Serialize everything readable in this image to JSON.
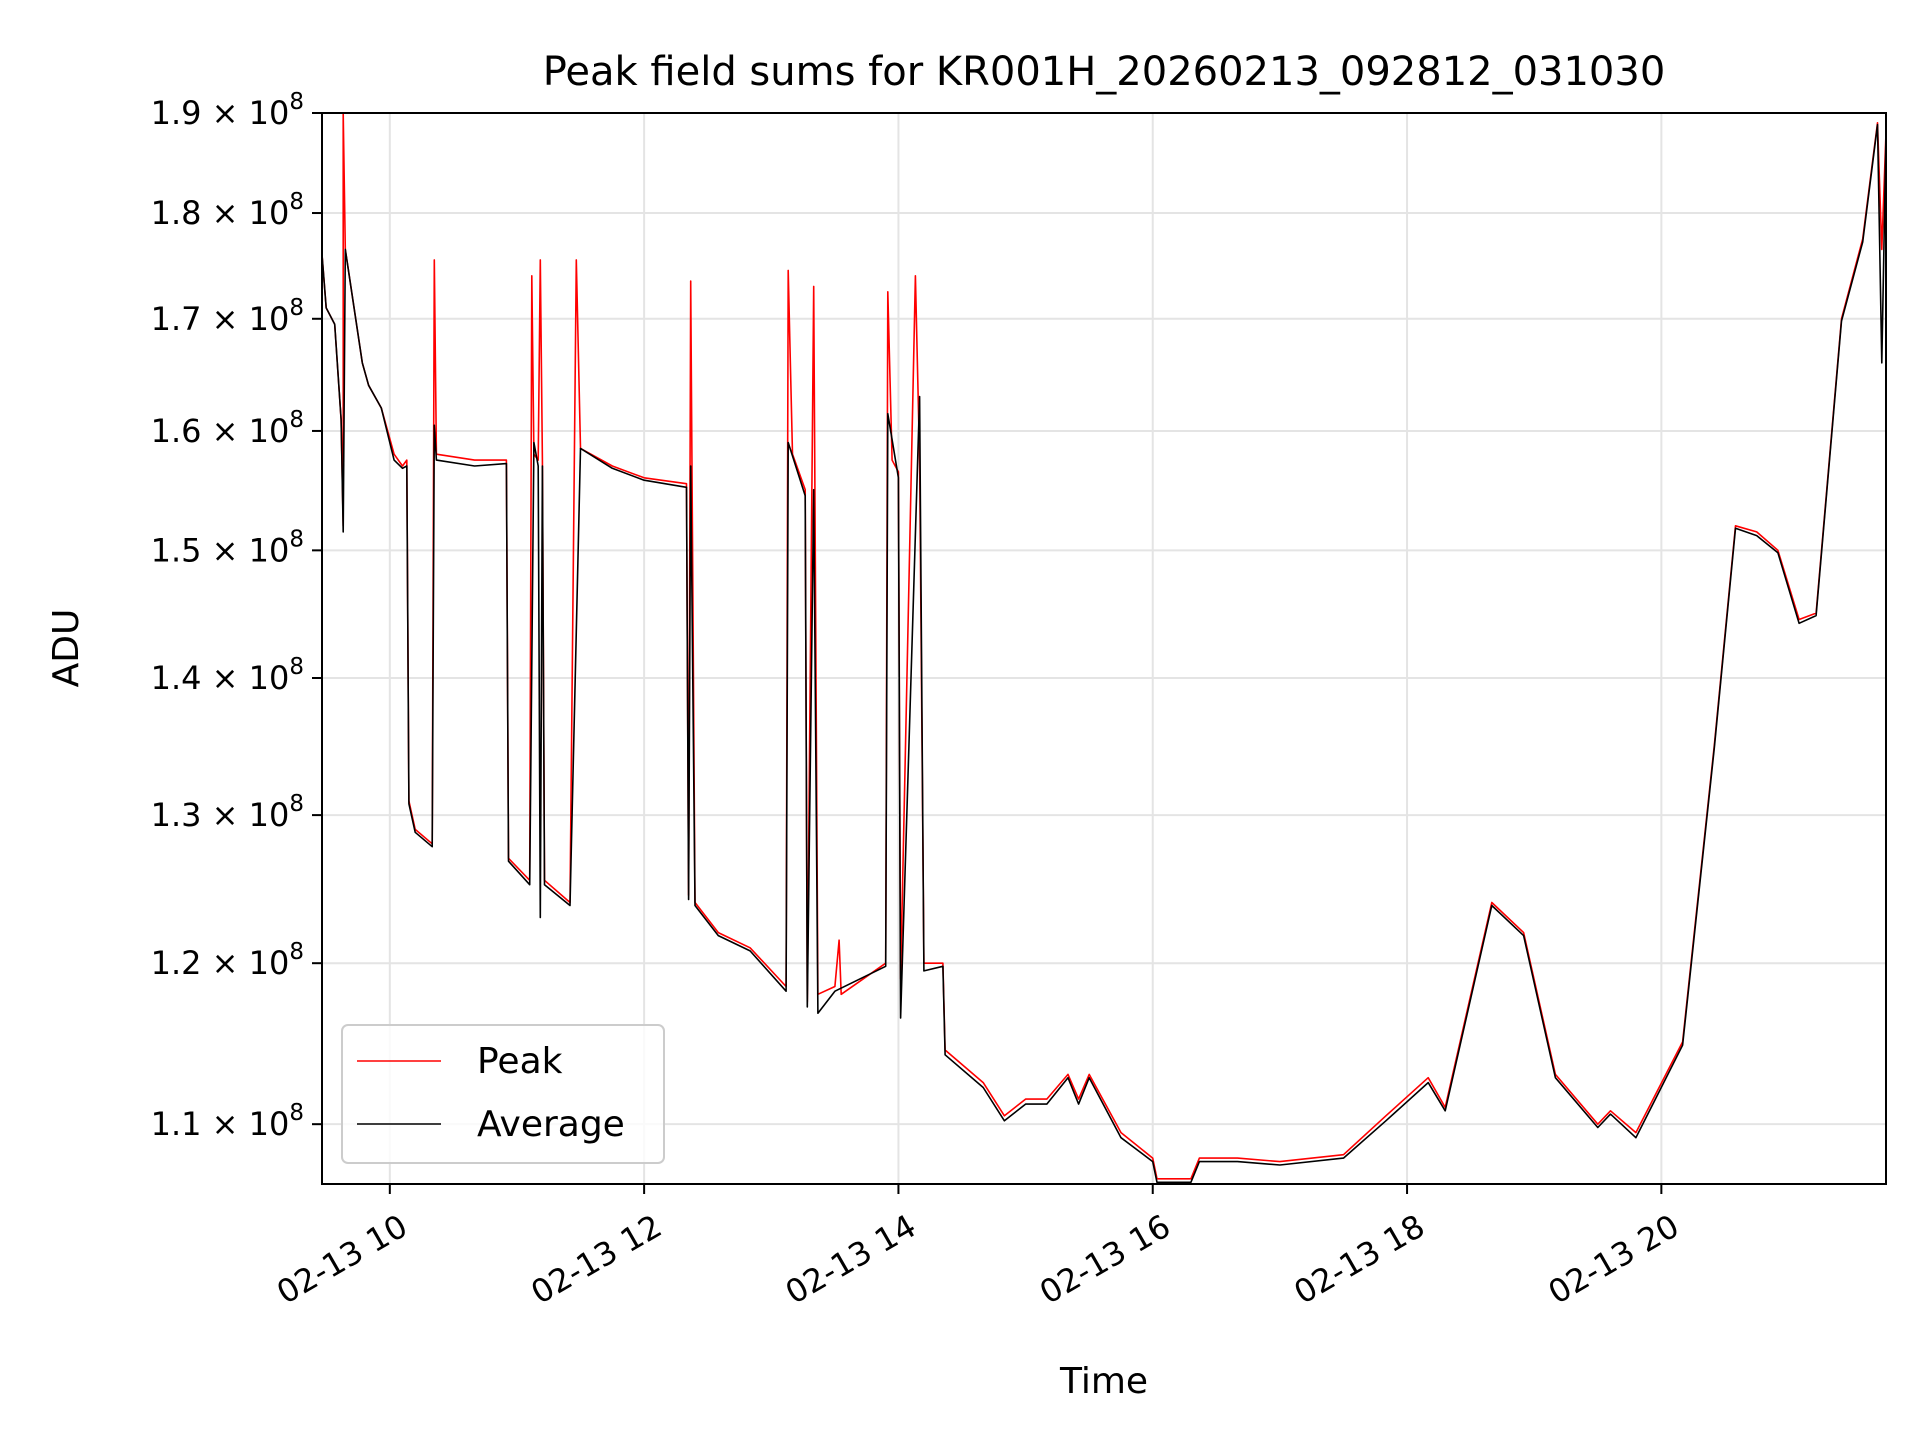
{
  "chart_data": {
    "type": "line",
    "title": "Peak field sums for KR001H_20260213_092812_031030",
    "xlabel": "Time",
    "ylabel": "ADU",
    "yscale": "log",
    "xlim": [
      "2026-02-13 09:28",
      "2026-02-13 21:46"
    ],
    "ylim": [
      106500000,
      190000000
    ],
    "grid": true,
    "legend_position": "lower-left",
    "x_ticks": [
      {
        "value": "2026-02-13 10:00",
        "label": "02-13 10"
      },
      {
        "value": "2026-02-13 12:00",
        "label": "02-13 12"
      },
      {
        "value": "2026-02-13 14:00",
        "label": "02-13 14"
      },
      {
        "value": "2026-02-13 16:00",
        "label": "02-13 16"
      },
      {
        "value": "2026-02-13 18:00",
        "label": "02-13 18"
      },
      {
        "value": "2026-02-13 20:00",
        "label": "02-13 20"
      }
    ],
    "y_ticks": [
      {
        "value": 110000000,
        "mantissa": "1.1",
        "exp": "8"
      },
      {
        "value": 120000000,
        "mantissa": "1.2",
        "exp": "8"
      },
      {
        "value": 130000000,
        "mantissa": "1.3",
        "exp": "8"
      },
      {
        "value": 140000000,
        "mantissa": "1.4",
        "exp": "8"
      },
      {
        "value": 150000000,
        "mantissa": "1.5",
        "exp": "8"
      },
      {
        "value": 160000000,
        "mantissa": "1.6",
        "exp": "8"
      },
      {
        "value": 170000000,
        "mantissa": "1.7",
        "exp": "8"
      },
      {
        "value": 180000000,
        "mantissa": "1.8",
        "exp": "8"
      },
      {
        "value": 190000000,
        "mantissa": "1.9",
        "exp": "8"
      }
    ],
    "series": [
      {
        "name": "Peak",
        "color": "#ff0000",
        "points": [
          [
            "2026-02-13 09:28",
            176000000
          ],
          [
            "2026-02-13 09:30",
            171000000
          ],
          [
            "2026-02-13 09:34",
            169500000
          ],
          [
            "2026-02-13 09:37",
            161000000
          ],
          [
            "2026-02-13 09:38",
            152000000
          ],
          [
            "2026-02-13 09:38",
            190000000
          ],
          [
            "2026-02-13 09:39",
            176500000
          ],
          [
            "2026-02-13 09:47",
            166000000
          ],
          [
            "2026-02-13 09:50",
            164000000
          ],
          [
            "2026-02-13 09:56",
            162000000
          ],
          [
            "2026-02-13 10:02",
            158000000
          ],
          [
            "2026-02-13 10:06",
            157000000
          ],
          [
            "2026-02-13 10:08",
            157500000
          ],
          [
            "2026-02-13 10:09",
            131000000
          ],
          [
            "2026-02-13 10:12",
            129000000
          ],
          [
            "2026-02-13 10:20",
            128000000
          ],
          [
            "2026-02-13 10:21",
            175500000
          ],
          [
            "2026-02-13 10:22",
            158000000
          ],
          [
            "2026-02-13 10:40",
            157500000
          ],
          [
            "2026-02-13 10:55",
            157500000
          ],
          [
            "2026-02-13 10:56",
            127000000
          ],
          [
            "2026-02-13 11:06",
            125500000
          ],
          [
            "2026-02-13 11:07",
            174000000
          ],
          [
            "2026-02-13 11:08",
            158000000
          ],
          [
            "2026-02-13 11:10",
            157500000
          ],
          [
            "2026-02-13 11:11",
            175500000
          ],
          [
            "2026-02-13 11:12",
            157500000
          ],
          [
            "2026-02-13 11:13",
            125500000
          ],
          [
            "2026-02-13 11:25",
            124000000
          ],
          [
            "2026-02-13 11:28",
            175500000
          ],
          [
            "2026-02-13 11:30",
            158500000
          ],
          [
            "2026-02-13 11:45",
            157000000
          ],
          [
            "2026-02-13 12:00",
            156000000
          ],
          [
            "2026-02-13 12:20",
            155500000
          ],
          [
            "2026-02-13 12:21",
            124500000
          ],
          [
            "2026-02-13 12:22",
            173500000
          ],
          [
            "2026-02-13 12:24",
            124000000
          ],
          [
            "2026-02-13 12:35",
            122000000
          ],
          [
            "2026-02-13 12:50",
            121000000
          ],
          [
            "2026-02-13 13:07",
            118500000
          ],
          [
            "2026-02-13 13:08",
            174500000
          ],
          [
            "2026-02-13 13:10",
            158000000
          ],
          [
            "2026-02-13 13:16",
            155000000
          ],
          [
            "2026-02-13 13:17",
            117500000
          ],
          [
            "2026-02-13 13:20",
            173000000
          ],
          [
            "2026-02-13 13:22",
            118000000
          ],
          [
            "2026-02-13 13:30",
            118500000
          ],
          [
            "2026-02-13 13:32",
            121500000
          ],
          [
            "2026-02-13 13:33",
            118000000
          ],
          [
            "2026-02-13 13:54",
            120000000
          ],
          [
            "2026-02-13 13:55",
            172500000
          ],
          [
            "2026-02-13 13:57",
            157500000
          ],
          [
            "2026-02-13 14:00",
            156500000
          ],
          [
            "2026-02-13 14:01",
            119000000
          ],
          [
            "2026-02-13 14:08",
            174000000
          ],
          [
            "2026-02-13 14:10",
            157500000
          ],
          [
            "2026-02-13 14:12",
            120000000
          ],
          [
            "2026-02-13 14:21",
            120000000
          ],
          [
            "2026-02-13 14:22",
            114500000
          ],
          [
            "2026-02-13 14:40",
            112500000
          ],
          [
            "2026-02-13 14:50",
            110500000
          ],
          [
            "2026-02-13 15:00",
            111500000
          ],
          [
            "2026-02-13 15:10",
            111500000
          ],
          [
            "2026-02-13 15:20",
            113000000
          ],
          [
            "2026-02-13 15:25",
            111500000
          ],
          [
            "2026-02-13 15:30",
            113000000
          ],
          [
            "2026-02-13 15:45",
            109500000
          ],
          [
            "2026-02-13 16:00",
            108000000
          ],
          [
            "2026-02-13 16:02",
            106800000
          ],
          [
            "2026-02-13 16:18",
            106800000
          ],
          [
            "2026-02-13 16:22",
            108000000
          ],
          [
            "2026-02-13 16:40",
            108000000
          ],
          [
            "2026-02-13 17:00",
            107800000
          ],
          [
            "2026-02-13 17:30",
            108200000
          ],
          [
            "2026-02-13 17:50",
            110500000
          ],
          [
            "2026-02-13 18:10",
            112800000
          ],
          [
            "2026-02-13 18:18",
            111000000
          ],
          [
            "2026-02-13 18:40",
            124000000
          ],
          [
            "2026-02-13 18:55",
            122000000
          ],
          [
            "2026-02-13 19:10",
            113000000
          ],
          [
            "2026-02-13 19:30",
            110000000
          ],
          [
            "2026-02-13 19:36",
            110800000
          ],
          [
            "2026-02-13 19:48",
            109500000
          ],
          [
            "2026-02-13 20:10",
            115000000
          ],
          [
            "2026-02-13 20:25",
            135000000
          ],
          [
            "2026-02-13 20:35",
            152000000
          ],
          [
            "2026-02-13 20:45",
            151500000
          ],
          [
            "2026-02-13 20:55",
            150000000
          ],
          [
            "2026-02-13 21:05",
            144500000
          ],
          [
            "2026-02-13 21:13",
            145000000
          ],
          [
            "2026-02-13 21:25",
            170000000
          ],
          [
            "2026-02-13 21:35",
            177500000
          ],
          [
            "2026-02-13 21:42",
            189000000
          ],
          [
            "2026-02-13 21:44",
            176500000
          ],
          [
            "2026-02-13 21:46",
            188000000
          ]
        ]
      },
      {
        "name": "Average",
        "color": "#000000",
        "points": [
          [
            "2026-02-13 09:28",
            176000000
          ],
          [
            "2026-02-13 09:30",
            171000000
          ],
          [
            "2026-02-13 09:34",
            169500000
          ],
          [
            "2026-02-13 09:37",
            161000000
          ],
          [
            "2026-02-13 09:38",
            151500000
          ],
          [
            "2026-02-13 09:39",
            176500000
          ],
          [
            "2026-02-13 09:47",
            166000000
          ],
          [
            "2026-02-13 09:50",
            164000000
          ],
          [
            "2026-02-13 09:56",
            162000000
          ],
          [
            "2026-02-13 10:02",
            157500000
          ],
          [
            "2026-02-13 10:06",
            156800000
          ],
          [
            "2026-02-13 10:08",
            157000000
          ],
          [
            "2026-02-13 10:09",
            130800000
          ],
          [
            "2026-02-13 10:12",
            128800000
          ],
          [
            "2026-02-13 10:20",
            127800000
          ],
          [
            "2026-02-13 10:21",
            160500000
          ],
          [
            "2026-02-13 10:22",
            157500000
          ],
          [
            "2026-02-13 10:40",
            157000000
          ],
          [
            "2026-02-13 10:55",
            157200000
          ],
          [
            "2026-02-13 10:56",
            126800000
          ],
          [
            "2026-02-13 11:06",
            125200000
          ],
          [
            "2026-02-13 11:08",
            159000000
          ],
          [
            "2026-02-13 11:10",
            157000000
          ],
          [
            "2026-02-13 11:11",
            123000000
          ],
          [
            "2026-02-13 11:12",
            157000000
          ],
          [
            "2026-02-13 11:13",
            125200000
          ],
          [
            "2026-02-13 11:25",
            123800000
          ],
          [
            "2026-02-13 11:30",
            158500000
          ],
          [
            "2026-02-13 11:45",
            156800000
          ],
          [
            "2026-02-13 12:00",
            155800000
          ],
          [
            "2026-02-13 12:20",
            155200000
          ],
          [
            "2026-02-13 12:21",
            124200000
          ],
          [
            "2026-02-13 12:22",
            157000000
          ],
          [
            "2026-02-13 12:24",
            123800000
          ],
          [
            "2026-02-13 12:35",
            121800000
          ],
          [
            "2026-02-13 12:50",
            120800000
          ],
          [
            "2026-02-13 13:07",
            118200000
          ],
          [
            "2026-02-13 13:08",
            159000000
          ],
          [
            "2026-02-13 13:16",
            154500000
          ],
          [
            "2026-02-13 13:17",
            117200000
          ],
          [
            "2026-02-13 13:20",
            155000000
          ],
          [
            "2026-02-13 13:22",
            116800000
          ],
          [
            "2026-02-13 13:30",
            118200000
          ],
          [
            "2026-02-13 13:54",
            119800000
          ],
          [
            "2026-02-13 13:55",
            161500000
          ],
          [
            "2026-02-13 14:00",
            156000000
          ],
          [
            "2026-02-13 14:01",
            116500000
          ],
          [
            "2026-02-13 14:10",
            163000000
          ],
          [
            "2026-02-13 14:12",
            119500000
          ],
          [
            "2026-02-13 14:21",
            119800000
          ],
          [
            "2026-02-13 14:22",
            114200000
          ],
          [
            "2026-02-13 14:40",
            112200000
          ],
          [
            "2026-02-13 14:50",
            110200000
          ],
          [
            "2026-02-13 15:00",
            111200000
          ],
          [
            "2026-02-13 15:10",
            111200000
          ],
          [
            "2026-02-13 15:20",
            112800000
          ],
          [
            "2026-02-13 15:25",
            111200000
          ],
          [
            "2026-02-13 15:30",
            112800000
          ],
          [
            "2026-02-13 15:45",
            109200000
          ],
          [
            "2026-02-13 16:00",
            107800000
          ],
          [
            "2026-02-13 16:02",
            106600000
          ],
          [
            "2026-02-13 16:18",
            106600000
          ],
          [
            "2026-02-13 16:22",
            107800000
          ],
          [
            "2026-02-13 16:40",
            107800000
          ],
          [
            "2026-02-13 17:00",
            107600000
          ],
          [
            "2026-02-13 17:30",
            108000000
          ],
          [
            "2026-02-13 17:50",
            110200000
          ],
          [
            "2026-02-13 18:10",
            112500000
          ],
          [
            "2026-02-13 18:18",
            110800000
          ],
          [
            "2026-02-13 18:40",
            123800000
          ],
          [
            "2026-02-13 18:55",
            121800000
          ],
          [
            "2026-02-13 19:10",
            112800000
          ],
          [
            "2026-02-13 19:30",
            109800000
          ],
          [
            "2026-02-13 19:36",
            110600000
          ],
          [
            "2026-02-13 19:48",
            109200000
          ],
          [
            "2026-02-13 20:10",
            114800000
          ],
          [
            "2026-02-13 20:25",
            134800000
          ],
          [
            "2026-02-13 20:35",
            151800000
          ],
          [
            "2026-02-13 20:45",
            151200000
          ],
          [
            "2026-02-13 20:55",
            149800000
          ],
          [
            "2026-02-13 21:05",
            144200000
          ],
          [
            "2026-02-13 21:13",
            144800000
          ],
          [
            "2026-02-13 21:25",
            169800000
          ],
          [
            "2026-02-13 21:35",
            177200000
          ],
          [
            "2026-02-13 21:42",
            188800000
          ],
          [
            "2026-02-13 21:44",
            166000000
          ],
          [
            "2026-02-13 21:46",
            187800000
          ]
        ]
      }
    ]
  }
}
